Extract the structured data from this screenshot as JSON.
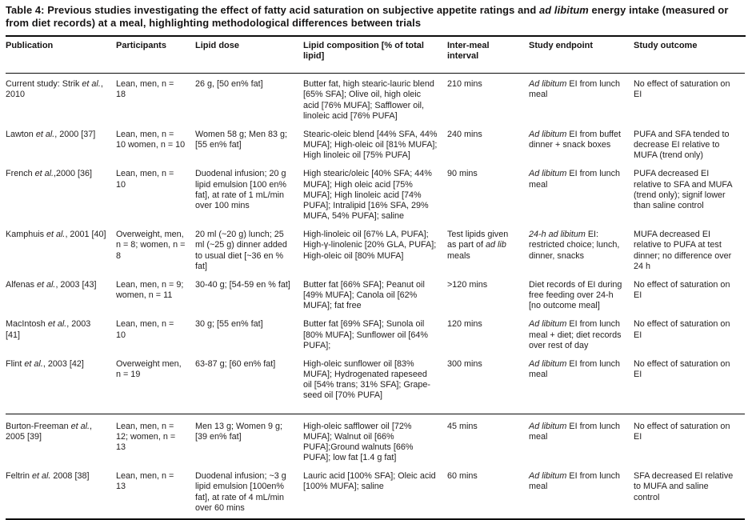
{
  "colors": {
    "text": "#1d1b1b",
    "rule": "#0c0c0c",
    "background": "#ffffff"
  },
  "title": "Table 4: Previous studies investigating the effect of fatty acid saturation on subjective appetite ratings and *ad libitum* energy intake (measured or from diet records) at a meal, highlighting methodological differences between trials",
  "table": {
    "headers": [
      "Publication",
      "Participants",
      "Lipid dose",
      "Lipid composition [% of total lipid]",
      "Inter-meal interval",
      "Study endpoint",
      "Study outcome"
    ],
    "rows": [
      [
        "Current study: Strik *et al.*, 2010",
        "Lean, men, n = 18",
        "26 g, [50 en% fat]",
        "Butter fat, high stearic-lauric blend [65% SFA]; Olive oil, high oleic acid [76% MUFA]; Safflower oil, linoleic acid [76% PUFA]",
        "210 mins",
        "*Ad libitum* EI from lunch meal",
        "No effect of saturation on EI"
      ],
      [
        "Lawton *et al.*, 2000 [37]",
        "Lean, men, n = 10 women, n = 10",
        "Women 58 g; Men 83 g; [55 en% fat]",
        "Stearic-oleic blend [44% SFA, 44% MUFA]; High-oleic oil [81% MUFA]; High linoleic oil [75% PUFA]",
        "240 mins",
        "*Ad libitum* EI from buffet dinner + snack boxes",
        "PUFA and SFA tended to decrease EI relative to MUFA (trend only)"
      ],
      [
        "French *et al.*,2000 [36]",
        "Lean, men, n = 10",
        "Duodenal infusion; 20 g lipid emulsion [100 en% fat], at rate of 1 mL/min over 100 mins",
        "High stearic/oleic [40% SFA; 44% MUFA]; High oleic acid [75% MUFA]; High linoleic acid [74% PUFA]; Intralipid [16% SFA, 29% MUFA, 54% PUFA]; saline",
        "90 mins",
        "*Ad libitum* EI from lunch meal",
        "PUFA decreased EI relative to SFA and MUFA (trend only); signif lower than saline control"
      ],
      [
        "Kamphuis *et al.*, 2001 [40]",
        "Overweight, men, n = 8; women, n = 8",
        "20 ml (~20 g) lunch; 25 ml (~25 g) dinner added to usual diet [~36 en % fat]",
        "High-linoleic oil [67% LA, PUFA]; High-γ-linolenic [20% GLA, PUFA]; High-oleic oil [80% MUFA]",
        "Test lipids given as part of *ad lib* meals",
        "*24-h ad libitum* EI: restricted choice; lunch, dinner, snacks",
        "MUFA decreased EI relative to PUFA at test dinner; no difference over 24 h"
      ],
      [
        "Alfenas *et al.*, 2003 [43]",
        "Lean, men, n = 9; women, n = 11",
        "30-40 g; [54-59 en % fat]",
        "Butter fat [66% SFA]; Peanut oil [49% MUFA]; Canola oil [62% MUFA]; fat free",
        ">120 mins",
        "Diet records of EI during free feeding over 24-h [no outcome meal]",
        "No effect of saturation on EI"
      ],
      [
        "MacIntosh *et al.*, 2003 [41]",
        "Lean, men, n = 10",
        "30 g; [55 en% fat]",
        "Butter fat [69% SFA]; Sunola oil [80% MUFA]; Sunflower oil [64% PUFA];",
        "120 mins",
        "*Ad libitum* EI from lunch meal + diet; diet records over rest of day",
        "No effect of saturation on EI"
      ],
      [
        "Flint *et al.*, 2003 [42]",
        "Overweight men, n = 19",
        "63-87 g; [60 en% fat]",
        "High-oleic sunflower oil [83% MUFA]; Hydrogenated rapeseed oil [54% trans; 31% SFA]; Grape- seed oil [70% PUFA]",
        "300 mins",
        "*Ad libitum* EI from lunch meal",
        "No effect of saturation on EI"
      ],
      [
        "Burton-Freeman *et al.*, 2005 [39]",
        "Lean, men, n = 12; women, n = 13",
        "Men 13 g; Women 9 g; [39 en% fat]",
        "High-oleic safflower oil [72% MUFA]; Walnut oil [66% PUFA];Ground walnuts [66% PUFA]; low fat [1.4 g fat]",
        "45 mins",
        "*Ad libitum* EI from lunch meal",
        "No effect of saturation on EI"
      ],
      [
        "Feltrin *et al.* 2008 [38]",
        "Lean, men, n = 13",
        "Duodenal infusion; ~3 g lipid emulsion [100en% fat], at rate of 4 mL/min over 60 mins",
        "Lauric acid [100% SFA]; Oleic acid [100% MUFA]; saline",
        "60 mins",
        "*Ad libitum* EI from lunch meal",
        "SFA decreased EI relative to MUFA and saline control"
      ]
    ]
  }
}
